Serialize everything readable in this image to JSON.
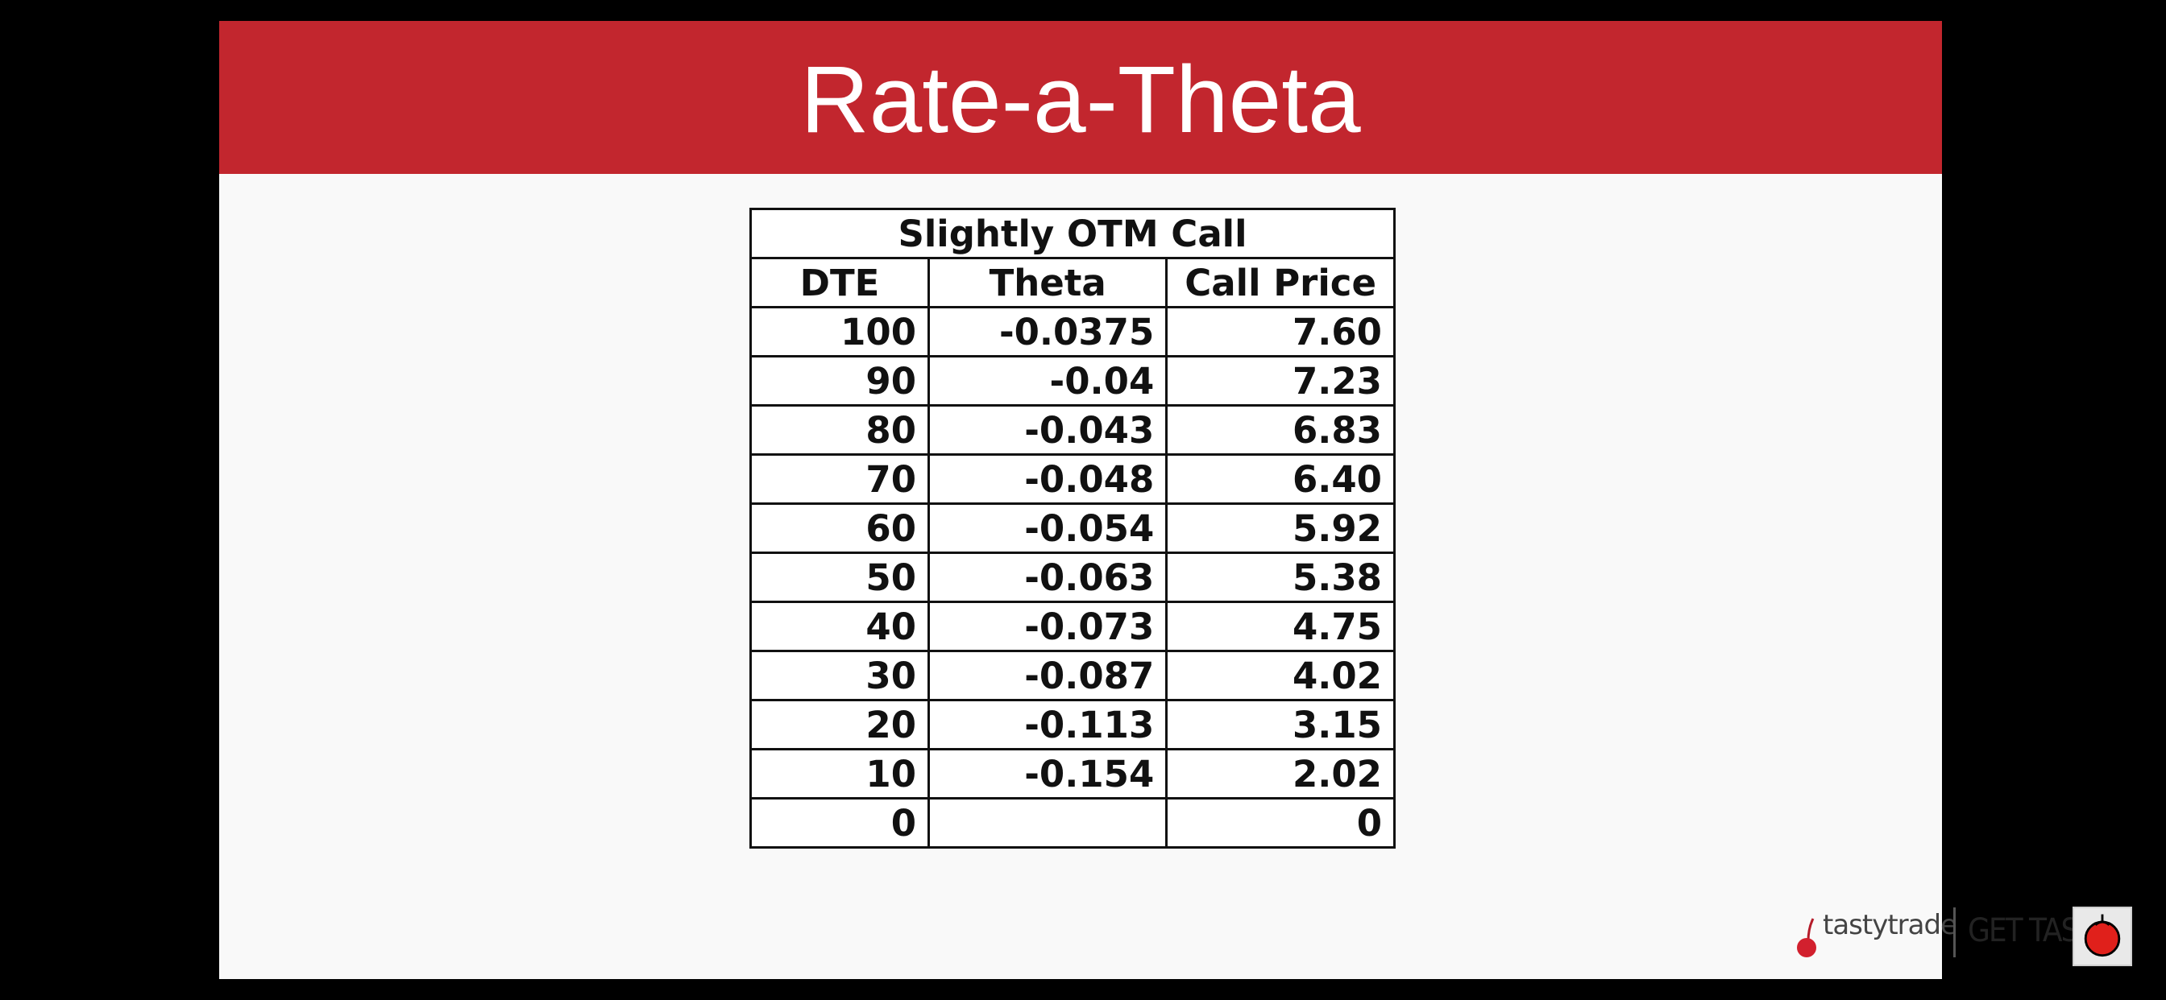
{
  "slide": {
    "title": "Rate-a-Theta"
  },
  "table": {
    "caption": "Slightly OTM Call",
    "headers": [
      "DTE",
      "Theta",
      "Call Price"
    ],
    "rows": [
      [
        "100",
        "-0.0375",
        "7.60"
      ],
      [
        "90",
        "-0.04",
        "7.23"
      ],
      [
        "80",
        "-0.043",
        "6.83"
      ],
      [
        "70",
        "-0.048",
        "6.40"
      ],
      [
        "60",
        "-0.054",
        "5.92"
      ],
      [
        "50",
        "-0.063",
        "5.38"
      ],
      [
        "40",
        "-0.073",
        "4.75"
      ],
      [
        "30",
        "-0.087",
        "4.02"
      ],
      [
        "20",
        "-0.113",
        "3.15"
      ],
      [
        "10",
        "-0.154",
        "2.02"
      ],
      [
        "0",
        "",
        "0"
      ]
    ]
  },
  "branding": {
    "tasty_logo_text": "tastytrade",
    "tasted_logo_text": "GET TASTED",
    "tasty_icon": "cherry-icon",
    "corner_icon": "tomato-icon"
  },
  "colors": {
    "title_bar": "#c2262e",
    "slide_background": "#f9f9f9",
    "page_background": "#000000"
  }
}
